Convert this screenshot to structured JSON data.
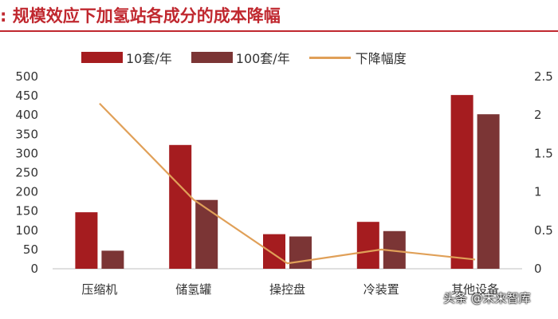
{
  "header": {
    "title": ": 规模效应下加氢站各成分的成本降幅"
  },
  "colors": {
    "series1": "#a51c1f",
    "series2": "#7b3535",
    "line": "#e0a058",
    "accent": "#c0282f"
  },
  "chart_data": {
    "type": "bar",
    "title": "",
    "categories": [
      "压缩机",
      "储氢罐",
      "操控盘",
      "冷装置",
      "其他设备"
    ],
    "series": [
      {
        "name": "10套/年",
        "type": "bar",
        "axis": "left",
        "values": [
          147,
          322,
          90,
          122,
          452
        ]
      },
      {
        "name": "100套/年",
        "type": "bar",
        "axis": "left",
        "values": [
          47,
          179,
          84,
          98,
          402
        ]
      },
      {
        "name": "下降幅度",
        "type": "line",
        "axis": "right",
        "values": [
          2.15,
          0.9,
          0.07,
          0.25,
          0.12
        ]
      }
    ],
    "ylim": [
      0,
      500
    ],
    "y_ticks": [
      "500",
      "450",
      "400",
      "350",
      "300",
      "250",
      "200",
      "150",
      "100",
      "50",
      "0"
    ],
    "y2lim": [
      0,
      2.5
    ],
    "y2_ticks": [
      "2.5",
      "2",
      "1.5",
      "1",
      "0.5",
      "0"
    ],
    "legend_position": "top",
    "grid": false
  },
  "watermark": "头条 @未来智库"
}
